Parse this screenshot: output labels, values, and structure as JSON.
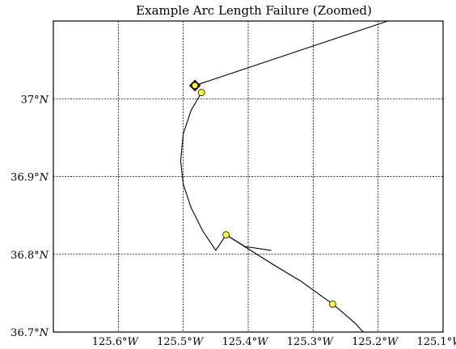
{
  "chart_data": {
    "type": "line",
    "title": "Example Arc Length Failure (Zoomed)",
    "xlabel": "",
    "ylabel": "",
    "xlim": [
      -125.7,
      -125.1
    ],
    "ylim": [
      36.7,
      37.1
    ],
    "grid": true,
    "legend": "none",
    "xticks": [
      {
        "value": -125.6,
        "deg": "125.6°",
        "hem": "W"
      },
      {
        "value": -125.5,
        "deg": "125.5°",
        "hem": "W"
      },
      {
        "value": -125.4,
        "deg": "125.4°",
        "hem": "W"
      },
      {
        "value": -125.3,
        "deg": "125.3°",
        "hem": "W"
      },
      {
        "value": -125.2,
        "deg": "125.2°",
        "hem": "W"
      },
      {
        "value": -125.1,
        "deg": "125.1°",
        "hem": "W"
      }
    ],
    "yticks": [
      {
        "value": 36.7,
        "deg": "36.7°",
        "hem": "N"
      },
      {
        "value": 36.8,
        "deg": "36.8°",
        "hem": "N"
      },
      {
        "value": 36.9,
        "deg": "36.9°",
        "hem": "N"
      },
      {
        "value": 37.0,
        "deg": "37°",
        "hem": "N"
      }
    ],
    "series": [
      {
        "x": [
          -125.185,
          -125.482
        ],
        "y": [
          37.1,
          37.017
        ]
      },
      {
        "x": [
          -125.472,
          -125.488,
          -125.5,
          -125.504,
          -125.5,
          -125.488,
          -125.47,
          -125.45,
          -125.434,
          -125.405,
          -125.365
        ],
        "y": [
          37.008,
          36.985,
          36.955,
          36.92,
          36.89,
          36.86,
          36.83,
          36.805,
          36.825,
          36.81,
          36.805
        ]
      },
      {
        "x": [
          -125.434,
          -125.4,
          -125.36,
          -125.32,
          -125.29,
          -125.27,
          -125.25,
          -125.235,
          -125.223
        ],
        "y": [
          36.825,
          36.807,
          36.786,
          36.766,
          36.748,
          36.736,
          36.722,
          36.711,
          36.7
        ]
      }
    ],
    "points": [
      {
        "x": -125.482,
        "y": 37.017,
        "color": "#ffff33",
        "marker": "diamond"
      },
      {
        "x": -125.472,
        "y": 37.008,
        "color": "#ffff33",
        "marker": "circle"
      },
      {
        "x": -125.434,
        "y": 36.825,
        "color": "#ffff33",
        "marker": "circle"
      },
      {
        "x": -125.27,
        "y": 36.736,
        "color": "#ffff33",
        "marker": "circle"
      }
    ]
  }
}
